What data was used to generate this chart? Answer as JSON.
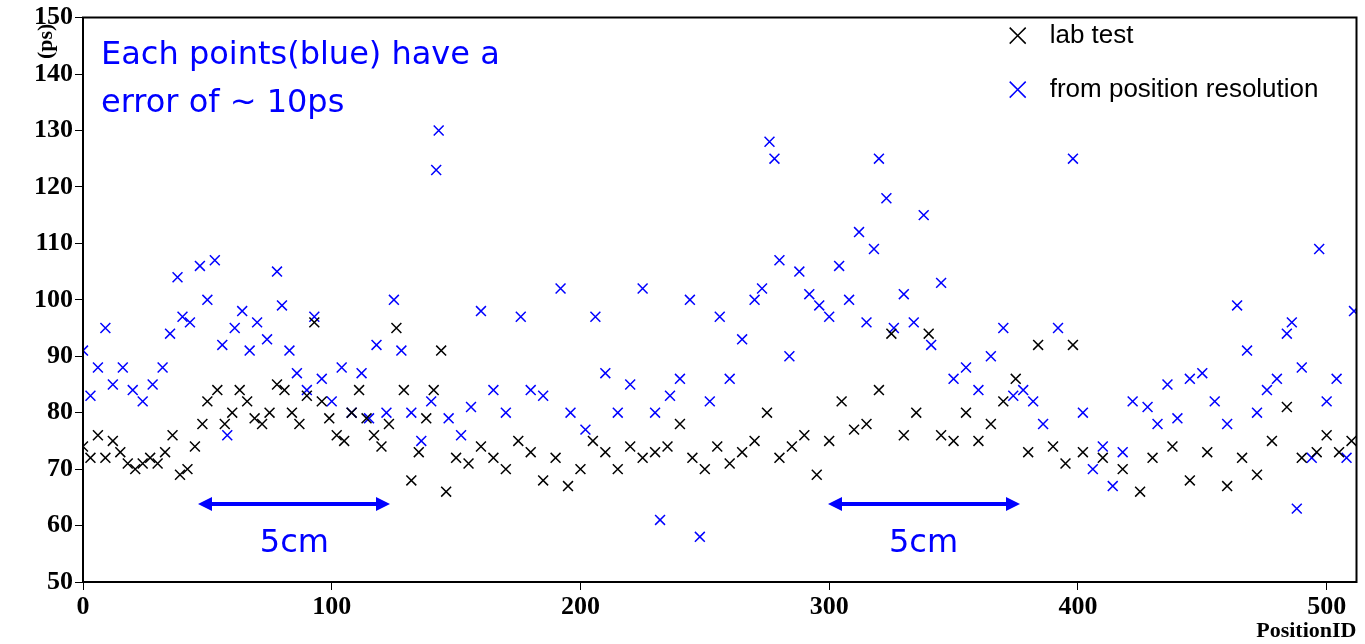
{
  "chart_data": {
    "type": "scatter",
    "xlabel": "PositionID",
    "ylabel": "(ps)",
    "xlim": [
      0,
      512
    ],
    "xticks": [
      0,
      100,
      200,
      300,
      400,
      500
    ],
    "ylim": [
      50,
      150
    ],
    "yticks": [
      50,
      60,
      70,
      80,
      90,
      100,
      110,
      120,
      130,
      140,
      150
    ],
    "grid": false,
    "legend": "top right",
    "marker": "cross",
    "annotations": [
      "Each points(blue) have a error of ~ 10ps",
      "5cm",
      "5cm"
    ],
    "series": [
      {
        "name": "lab test",
        "color": "#000000",
        "x": [
          0,
          3,
          6,
          9,
          12,
          15,
          18,
          21,
          24,
          27,
          30,
          33,
          36,
          39,
          42,
          45,
          48,
          50,
          54,
          57,
          60,
          63,
          66,
          69,
          72,
          75,
          78,
          81,
          84,
          87,
          90,
          93,
          96,
          99,
          102,
          105,
          108,
          111,
          114,
          117,
          120,
          123,
          126,
          129,
          132,
          135,
          138,
          141,
          144,
          146,
          150,
          155,
          160,
          165,
          170,
          175,
          180,
          185,
          190,
          195,
          200,
          205,
          210,
          215,
          220,
          225,
          230,
          235,
          240,
          245,
          250,
          255,
          260,
          265,
          270,
          275,
          280,
          285,
          290,
          295,
          300,
          305,
          310,
          315,
          320,
          325,
          330,
          335,
          340,
          345,
          350,
          355,
          360,
          365,
          370,
          375,
          380,
          384,
          390,
          395,
          398,
          402,
          410,
          418,
          425,
          430,
          438,
          445,
          452,
          460,
          466,
          472,
          478,
          484,
          490,
          496,
          500,
          505,
          510
        ],
        "values": [
          74,
          72,
          76,
          72,
          75,
          73,
          71,
          70,
          71,
          72,
          71,
          73,
          76,
          69,
          70,
          74,
          78,
          82,
          84,
          78,
          80,
          84,
          82,
          79,
          78,
          80,
          85,
          84,
          80,
          78,
          83,
          96,
          82,
          79,
          76,
          75,
          80,
          84,
          79,
          76,
          74,
          78,
          95,
          84,
          68,
          73,
          79,
          84,
          91,
          66,
          72,
          71,
          74,
          72,
          70,
          75,
          73,
          68,
          72,
          67,
          70,
          75,
          73,
          70,
          74,
          72,
          73,
          74,
          78,
          72,
          70,
          74,
          71,
          73,
          75,
          80,
          72,
          74,
          76,
          69,
          75,
          82,
          77,
          78,
          84,
          94,
          76,
          80,
          94,
          76,
          75,
          80,
          75,
          78,
          82,
          86,
          73,
          92,
          74,
          71,
          92,
          73,
          72,
          70,
          66,
          72,
          74,
          68,
          73,
          67,
          72,
          69,
          75,
          81,
          72,
          73,
          76,
          73,
          75
        ]
      },
      {
        "name": "from position resolution",
        "color": "#0000ff",
        "x": [
          0,
          3,
          6,
          9,
          12,
          16,
          20,
          24,
          28,
          32,
          35,
          38,
          40,
          43,
          47,
          50,
          53,
          56,
          58,
          61,
          64,
          67,
          70,
          74,
          78,
          80,
          83,
          86,
          90,
          93,
          96,
          100,
          104,
          108,
          112,
          115,
          118,
          122,
          125,
          128,
          132,
          136,
          140,
          142,
          143,
          147,
          152,
          156,
          160,
          165,
          170,
          176,
          180,
          185,
          192,
          196,
          202,
          206,
          210,
          215,
          220,
          225,
          230,
          232,
          236,
          240,
          244,
          248,
          252,
          256,
          260,
          265,
          270,
          273,
          276,
          278,
          280,
          284,
          288,
          292,
          296,
          300,
          304,
          308,
          312,
          315,
          318,
          320,
          323,
          326,
          330,
          334,
          338,
          341,
          345,
          350,
          355,
          360,
          365,
          370,
          374,
          378,
          382,
          386,
          392,
          398,
          402,
          406,
          410,
          414,
          418,
          422,
          428,
          432,
          436,
          440,
          445,
          450,
          455,
          460,
          464,
          468,
          472,
          476,
          480,
          484,
          486,
          488,
          490,
          494,
          497,
          500,
          504,
          508,
          511
        ],
        "values": [
          91,
          83,
          88,
          95,
          85,
          88,
          84,
          82,
          85,
          88,
          94,
          104,
          97,
          96,
          106,
          100,
          107,
          92,
          76,
          95,
          98,
          91,
          96,
          93,
          105,
          99,
          91,
          87,
          84,
          97,
          86,
          82,
          88,
          80,
          87,
          79,
          92,
          80,
          100,
          91,
          80,
          75,
          82,
          123,
          130,
          79,
          76,
          81,
          98,
          84,
          80,
          97,
          84,
          83,
          102,
          80,
          77,
          97,
          87,
          80,
          85,
          102,
          80,
          61,
          83,
          86,
          100,
          58,
          82,
          97,
          86,
          93,
          100,
          102,
          128,
          125,
          107,
          90,
          105,
          101,
          99,
          97,
          106,
          100,
          112,
          96,
          109,
          125,
          118,
          95,
          101,
          96,
          115,
          92,
          103,
          86,
          88,
          84,
          90,
          95,
          83,
          84,
          82,
          78,
          95,
          125,
          80,
          70,
          74,
          67,
          73,
          82,
          81,
          78,
          85,
          79,
          86,
          87,
          82,
          78,
          99,
          91,
          80,
          84,
          86,
          94,
          96,
          63,
          88,
          72,
          109,
          82,
          86,
          72,
          98
        ]
      }
    ]
  }
}
